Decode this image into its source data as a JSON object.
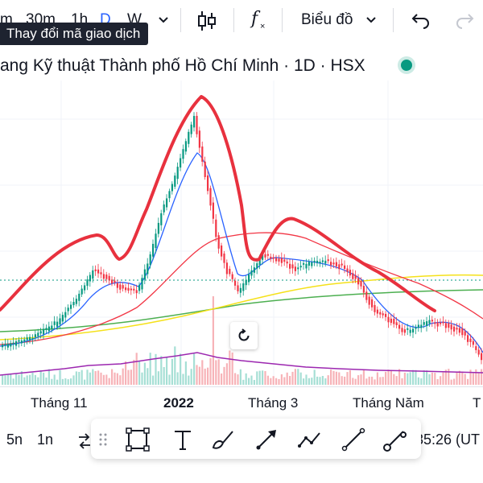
{
  "toolbar": {
    "interval_m": "m",
    "interval_30m": "30m",
    "interval_1h": "1h",
    "interval_d": "D",
    "interval_w": "W",
    "indicator_label": "f",
    "chart_type_label": "Biểu đồ",
    "tooltip": "Thay đổi mã giao dịch"
  },
  "symbol_title": "ang Kỹ thuật Thành phố Hồ Chí Minh · 1D · HSX",
  "x_axis": {
    "labels": [
      "Tháng 11",
      "2022",
      "Tháng 3",
      "Tháng Năm",
      "T"
    ]
  },
  "bottom": {
    "range_5n": "5n",
    "range_1n": "1n",
    "time_text": "35:26 (UT"
  },
  "colors": {
    "up": "#089981",
    "down": "#f23645",
    "annotation": "#e8313e",
    "ma_blue": "#2962ff",
    "ma_red": "#f23645",
    "ma_yellow": "#f5e11a",
    "ma_green": "#4caf50",
    "volume_line": "#9c27b0"
  },
  "icons": {
    "dropdown": "chevron-down-icon",
    "candles": "candlestick-icon",
    "undo": "undo-icon",
    "redo": "redo-icon",
    "reset": "reset-icon"
  }
}
